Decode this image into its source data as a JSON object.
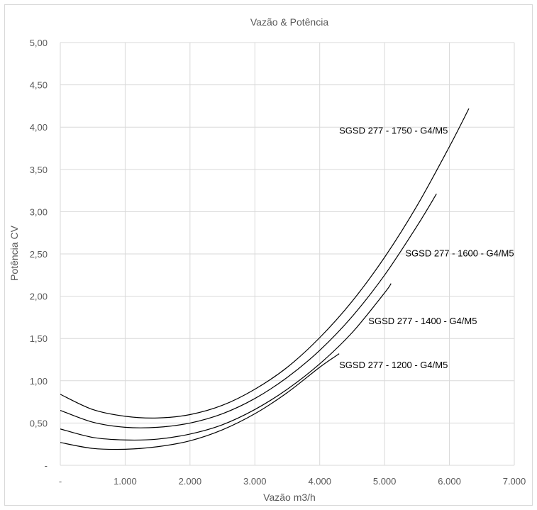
{
  "chart_data": {
    "type": "line",
    "title": "Vazão & Potência",
    "xlabel": "Vazão m3/h",
    "ylabel": "Potência CV",
    "xlim": [
      0,
      7000
    ],
    "ylim": [
      0,
      5
    ],
    "grid": true,
    "x_ticks": [
      {
        "value": 0,
        "label": "-"
      },
      {
        "value": 1000,
        "label": "1.000"
      },
      {
        "value": 2000,
        "label": "2.000"
      },
      {
        "value": 3000,
        "label": "3.000"
      },
      {
        "value": 4000,
        "label": "4.000"
      },
      {
        "value": 5000,
        "label": "5.000"
      },
      {
        "value": 6000,
        "label": "6.000"
      },
      {
        "value": 7000,
        "label": "7.000"
      }
    ],
    "y_ticks": [
      {
        "value": 0,
        "label": "-"
      },
      {
        "value": 0.5,
        "label": "0,50"
      },
      {
        "value": 1.0,
        "label": "1,00"
      },
      {
        "value": 1.5,
        "label": "1,50"
      },
      {
        "value": 2.0,
        "label": "2,00"
      },
      {
        "value": 2.5,
        "label": "2,50"
      },
      {
        "value": 3.0,
        "label": "3,00"
      },
      {
        "value": 3.5,
        "label": "3,50"
      },
      {
        "value": 4.0,
        "label": "4,00"
      },
      {
        "value": 4.5,
        "label": "4,50"
      },
      {
        "value": 5.0,
        "label": "5,00"
      }
    ],
    "series": [
      {
        "name": "SGSD 277 - 1750 - G4/M5",
        "label_anchor": [
          4300,
          3.92
        ],
        "x": [
          0,
          500,
          1000,
          1500,
          2000,
          2500,
          3000,
          3500,
          4000,
          4500,
          5000,
          5500,
          6000,
          6300
        ],
        "y": [
          0.84,
          0.66,
          0.58,
          0.56,
          0.6,
          0.71,
          0.9,
          1.16,
          1.51,
          1.94,
          2.46,
          3.07,
          3.77,
          4.22
        ]
      },
      {
        "name": "SGSD 277 - 1600 - G4/M5",
        "label_anchor": [
          5320,
          2.47
        ],
        "x": [
          0,
          500,
          1000,
          1500,
          2000,
          2500,
          3000,
          3500,
          4000,
          4500,
          5000,
          5500,
          5800
        ],
        "y": [
          0.65,
          0.51,
          0.45,
          0.45,
          0.5,
          0.61,
          0.79,
          1.04,
          1.36,
          1.76,
          2.25,
          2.83,
          3.21
        ]
      },
      {
        "name": "SGSD 277 - 1400 - G4/M5",
        "label_anchor": [
          4750,
          1.67
        ],
        "x": [
          0,
          500,
          1000,
          1500,
          2000,
          2500,
          3000,
          3500,
          4000,
          4500,
          5000,
          5100
        ],
        "y": [
          0.43,
          0.33,
          0.3,
          0.31,
          0.37,
          0.48,
          0.66,
          0.9,
          1.2,
          1.57,
          2.04,
          2.15
        ]
      },
      {
        "name": "SGSD 277 - 1200 - G4/M5",
        "label_anchor": [
          4300,
          1.15
        ],
        "x": [
          0,
          500,
          1000,
          1500,
          2000,
          2500,
          3000,
          3500,
          4000,
          4300
        ],
        "y": [
          0.27,
          0.2,
          0.19,
          0.22,
          0.29,
          0.42,
          0.61,
          0.86,
          1.16,
          1.32
        ]
      }
    ]
  }
}
